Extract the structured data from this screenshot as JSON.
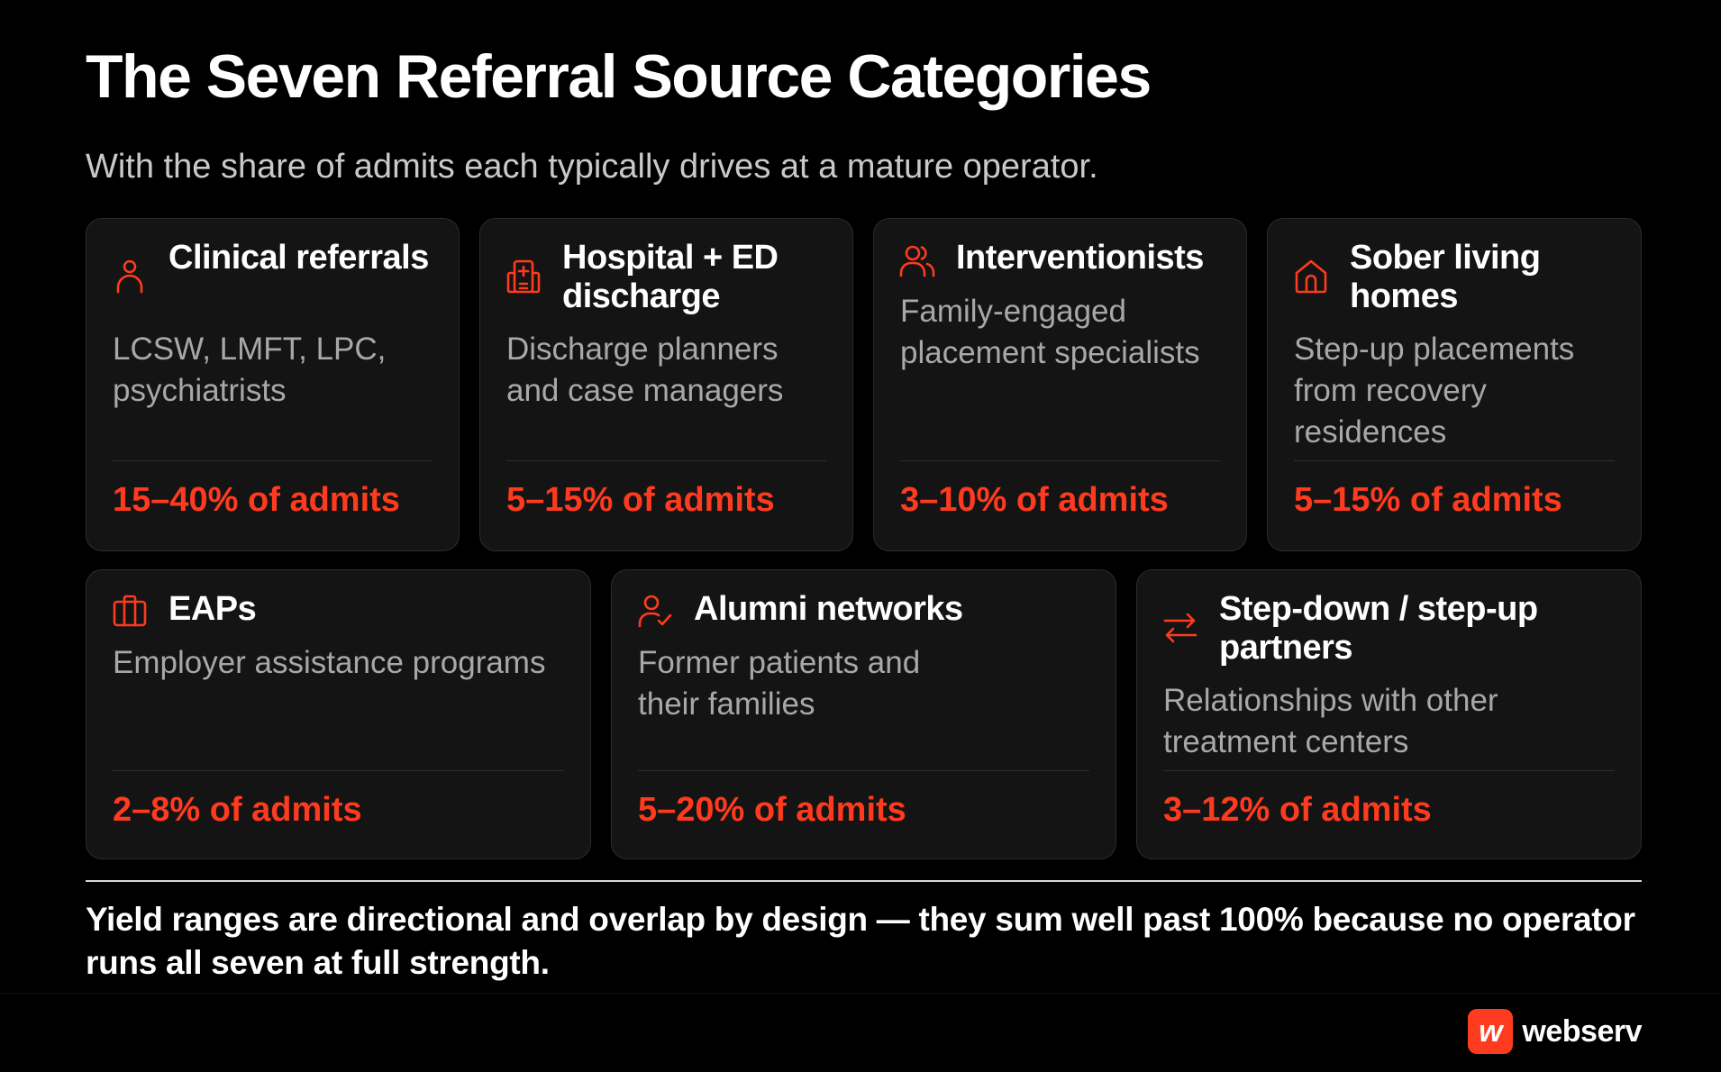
{
  "title": "The Seven Referral Source Categories",
  "subtitle": "With the share of admits each typically drives at a mature operator.",
  "cards": [
    {
      "icon": "person-icon",
      "title": "Clinical referrals",
      "description": "LCSW, LMFT, LPC, psychiatrists",
      "share": "15–40% of admits"
    },
    {
      "icon": "hospital-icon",
      "title": "Hospital + ED discharge",
      "description": "Discharge planners and case managers",
      "share": "5–15% of admits"
    },
    {
      "icon": "users-icon",
      "title": "Interventionists",
      "description": "Family-engaged placement specialists",
      "share": "3–10% of admits"
    },
    {
      "icon": "home-icon",
      "title": "Sober living homes",
      "description": "Step-up placements from recovery residences",
      "share": "5–15% of admits"
    },
    {
      "icon": "briefcase-icon",
      "title": "EAPs",
      "description": "Employer assistance programs",
      "share": "2–8% of admits"
    },
    {
      "icon": "user-check-icon",
      "title": "Alumni networks",
      "description": "Former patients and their families",
      "share": "5–20% of admits"
    },
    {
      "icon": "arrows-exchange-icon",
      "title": "Step-down / step-up partners",
      "description": "Relationships with other treatment centers",
      "share": "3–12% of admits"
    }
  ],
  "footnote": "Yield ranges are directional and overlap by design — they sum well past 100% because no operator runs all seven at full strength.",
  "brand": {
    "logo_glyph": "w",
    "name": "webserv"
  },
  "colors": {
    "background": "#000000",
    "card": "#141414",
    "accent": "#ff3b1f",
    "muted_text": "#a8a8a8"
  }
}
